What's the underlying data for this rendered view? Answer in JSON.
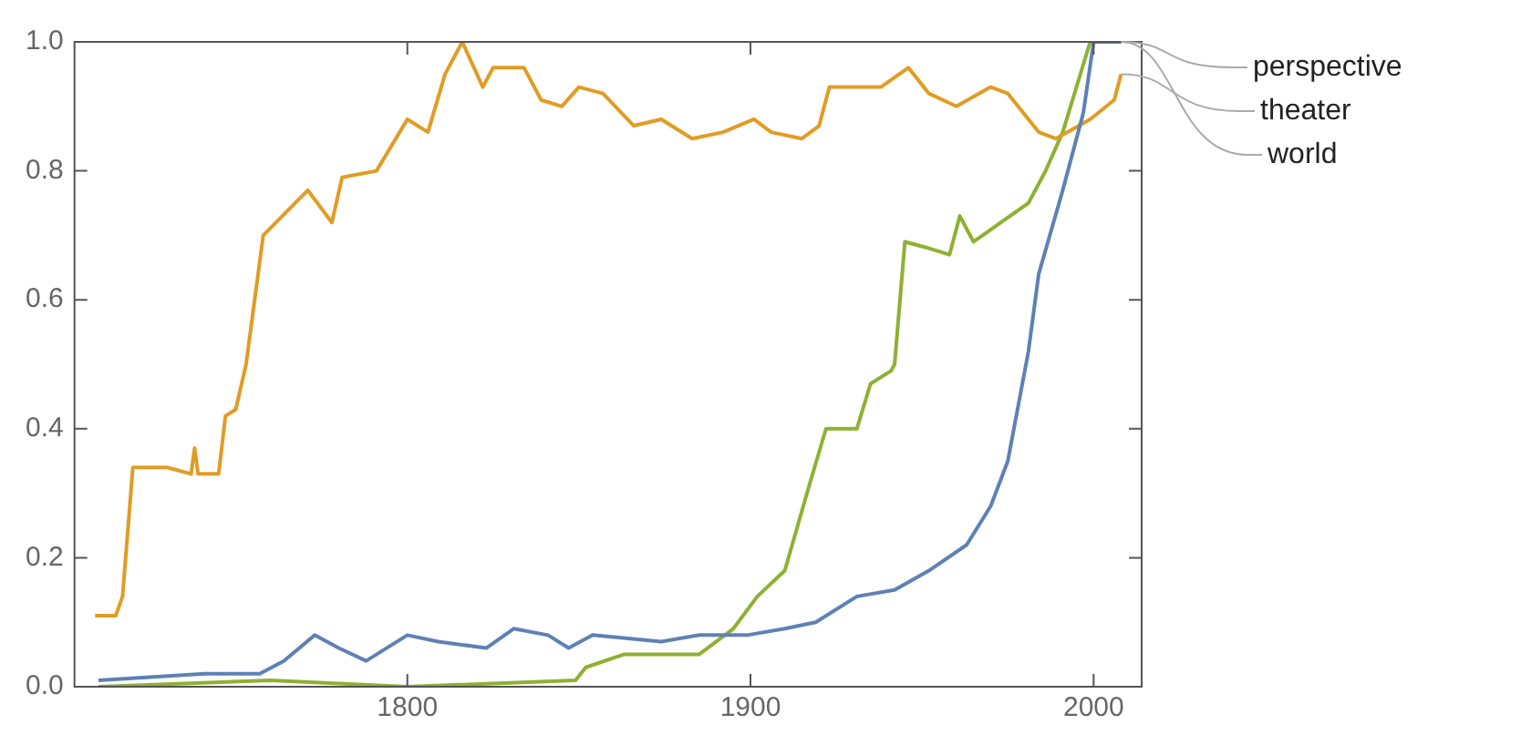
{
  "chart_data": {
    "type": "line",
    "xlim": [
      1703,
      2014
    ],
    "xticks": [
      1800,
      1900,
      2000
    ],
    "ylim": [
      0,
      1
    ],
    "yticks": [
      {
        "value": 0,
        "label": "0.0"
      },
      {
        "value": 0.2,
        "label": "0.2"
      },
      {
        "value": 0.4,
        "label": "0.4"
      },
      {
        "value": 0.6,
        "label": "0.6"
      },
      {
        "value": 0.8,
        "label": "0.8"
      },
      {
        "value": 1,
        "label": "1.0"
      }
    ],
    "grid": false,
    "legend": false,
    "marker": "none",
    "line_style": "solid",
    "series": [
      {
        "name": "perspective",
        "color": "#5e81b5",
        "x": [
          1710,
          1741,
          1757,
          1764,
          1773,
          1780,
          1788,
          1800,
          1809,
          1823,
          1831,
          1841,
          1847,
          1854,
          1874,
          1885,
          1899,
          1910,
          1919,
          1931,
          1942,
          1952,
          1963,
          1970,
          1975,
          1981,
          1984,
          1991,
          1997,
          2000,
          2008
        ],
        "values": [
          0.01,
          0.02,
          0.02,
          0.04,
          0.08,
          0.06,
          0.04,
          0.08,
          0.07,
          0.06,
          0.09,
          0.08,
          0.06,
          0.08,
          0.07,
          0.08,
          0.08,
          0.09,
          0.1,
          0.14,
          0.15,
          0.18,
          0.22,
          0.28,
          0.35,
          0.52,
          0.64,
          0.77,
          0.89,
          1.0,
          1.0
        ]
      },
      {
        "name": "theater",
        "color": "#e19c24",
        "x": [
          1709,
          1715,
          1717,
          1720,
          1730,
          1737,
          1738,
          1739,
          1745,
          1747,
          1750,
          1753,
          1758,
          1771,
          1778,
          1781,
          1791,
          1800,
          1806,
          1811,
          1816,
          1822,
          1825,
          1834,
          1839,
          1845,
          1850,
          1857,
          1866,
          1874,
          1883,
          1892,
          1901,
          1906,
          1915,
          1920,
          1923,
          1938,
          1946,
          1952,
          1960,
          1970,
          1975,
          1984,
          1989,
          1999,
          2006,
          2008
        ],
        "values": [
          0.11,
          0.11,
          0.14,
          0.34,
          0.34,
          0.33,
          0.37,
          0.33,
          0.33,
          0.42,
          0.43,
          0.5,
          0.7,
          0.77,
          0.72,
          0.79,
          0.8,
          0.88,
          0.86,
          0.95,
          1.0,
          0.93,
          0.96,
          0.96,
          0.91,
          0.9,
          0.93,
          0.92,
          0.87,
          0.88,
          0.85,
          0.86,
          0.88,
          0.86,
          0.85,
          0.87,
          0.93,
          0.93,
          0.96,
          0.92,
          0.9,
          0.93,
          0.92,
          0.86,
          0.85,
          0.88,
          0.91,
          0.95
        ]
      },
      {
        "name": "world",
        "color": "#8fb032",
        "x": [
          1710,
          1760,
          1800,
          1849,
          1852,
          1863,
          1874,
          1885,
          1895,
          1902,
          1910,
          1917,
          1922,
          1931,
          1935,
          1941,
          1942,
          1945,
          1952,
          1958,
          1961,
          1965,
          1973,
          1981,
          1986,
          1991,
          1995,
          1999,
          2008
        ],
        "values": [
          0.0,
          0.01,
          0.0,
          0.01,
          0.03,
          0.05,
          0.05,
          0.05,
          0.09,
          0.14,
          0.18,
          0.31,
          0.4,
          0.4,
          0.47,
          0.49,
          0.5,
          0.69,
          0.68,
          0.67,
          0.73,
          0.69,
          0.72,
          0.75,
          0.8,
          0.86,
          0.93,
          1.0,
          1.0
        ]
      }
    ]
  }
}
